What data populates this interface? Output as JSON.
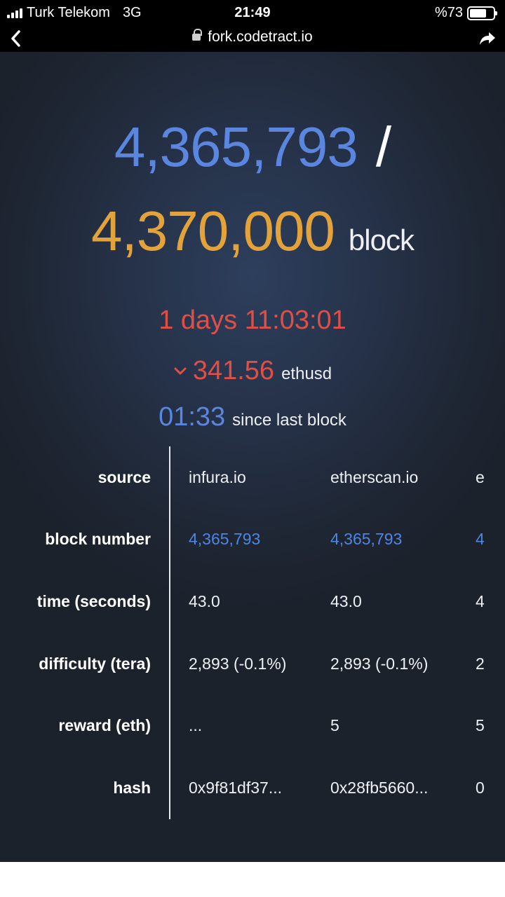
{
  "status_bar": {
    "carrier": "Turk Telekom",
    "network": "3G",
    "time": "21:49",
    "battery_text": "%73",
    "battery_level": 0.73
  },
  "browser": {
    "url": "fork.codetract.io"
  },
  "hero": {
    "current_block": "4,365,793",
    "slash": "/",
    "target_block": "4,370,000",
    "target_unit": "block",
    "countdown": "1 days 11:03:01",
    "price": "341.56",
    "price_unit": "ethusd",
    "since_value": "01:33",
    "since_label": "since last block"
  },
  "table": {
    "row_labels": [
      "source",
      "block number",
      "time (seconds)",
      "difficulty (tera)",
      "reward (eth)",
      "hash"
    ],
    "columns": [
      {
        "cells": [
          "infura.io",
          "4,365,793",
          "43.0",
          "2,893 (-0.1%)",
          "...",
          "0x9f81df37..."
        ]
      },
      {
        "cells": [
          "etherscan.io",
          "4,365,793",
          "43.0",
          "2,893 (-0.1%)",
          "5",
          "0x28fb5660..."
        ]
      },
      {
        "cells": [
          "e",
          "4",
          "4",
          "2",
          "5",
          "0"
        ]
      }
    ]
  },
  "colors": {
    "blue": "#5a86e0",
    "orange": "#e3a23a",
    "red": "#e04f47"
  }
}
